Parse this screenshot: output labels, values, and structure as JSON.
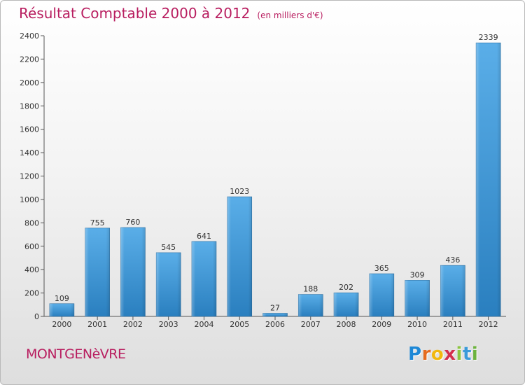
{
  "header": {
    "title": "Résultat Comptable 2000 à 2012",
    "subtitle": "(en milliers d'€)"
  },
  "commune": "MONTGENèVRE",
  "logo": {
    "letters": [
      "P",
      "r",
      "o",
      "x",
      "i",
      "t",
      "i"
    ]
  },
  "colors": {
    "title": "#b81d5f",
    "bar_top": "#5aaee8",
    "bar_bottom": "#2a7fbf"
  },
  "chart_data": {
    "type": "bar",
    "title": "Résultat Comptable 2000 à 2012",
    "xlabel": "",
    "ylabel": "",
    "categories": [
      "2000",
      "2001",
      "2002",
      "2003",
      "2004",
      "2005",
      "2006",
      "2007",
      "2008",
      "2009",
      "2010",
      "2011",
      "2012"
    ],
    "values": [
      109,
      755,
      760,
      545,
      641,
      1023,
      27,
      188,
      202,
      365,
      309,
      436,
      2339
    ],
    "ylim": [
      0,
      2400
    ],
    "yticks": [
      0,
      200,
      400,
      600,
      800,
      1000,
      1200,
      1400,
      1600,
      1800,
      2000,
      2200,
      2400
    ],
    "grid": false
  }
}
